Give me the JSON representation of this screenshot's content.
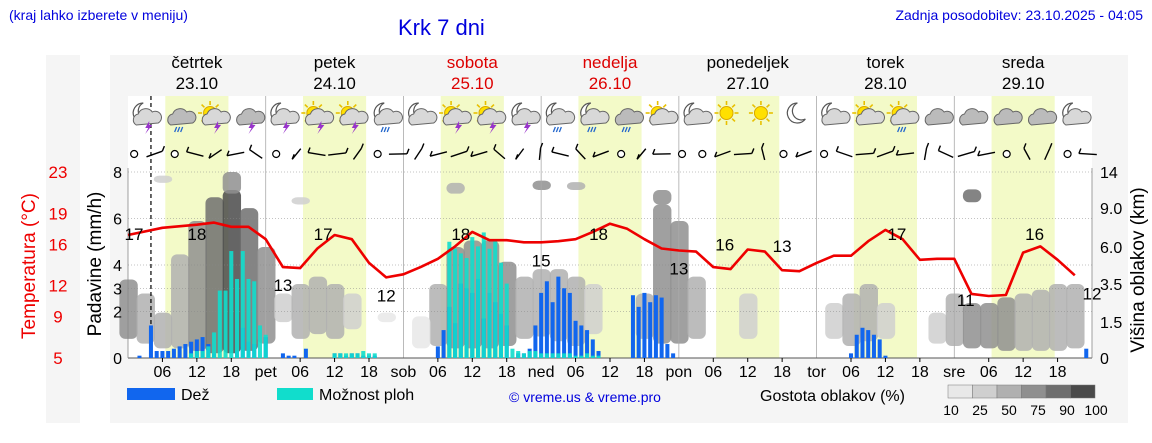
{
  "header": {
    "note": "(kraj lahko izberete v meniju)",
    "title": "Krk 7 dni",
    "updated": "Zadnja posodobitev: 23.10.2025 - 04:05"
  },
  "days": [
    {
      "name": "četrtek",
      "date": "23.10",
      "weekend": false
    },
    {
      "name": "petek",
      "date": "24.10",
      "weekend": false
    },
    {
      "name": "sobota",
      "date": "25.10",
      "weekend": true
    },
    {
      "name": "nedelja",
      "date": "26.10",
      "weekend": true
    },
    {
      "name": "ponedeljek",
      "date": "27.10",
      "weekend": false
    },
    {
      "name": "torek",
      "date": "28.10",
      "weekend": false
    },
    {
      "name": "sreda",
      "date": "29.10",
      "weekend": false
    }
  ],
  "axis_day_abbr": [
    "pet",
    "sob",
    "ned",
    "pon",
    "tor",
    "sre"
  ],
  "hour_ticks": [
    "06",
    "12",
    "18"
  ],
  "icons": [
    "moon-storm",
    "cloud-rain",
    "sun-storm",
    "cloud-storm",
    "moon-storm",
    "sun-storm",
    "sun-storm",
    "moon-rain",
    "moon-cloud",
    "sun-storm",
    "sun-storm",
    "moon-storm",
    "moon-rain",
    "moon-rain",
    "cloud-rain",
    "sun-cloud",
    "moon-cloud",
    "sun",
    "sun",
    "moon",
    "moon-cloud",
    "sun-cloud",
    "sun-rain",
    "cloud",
    "cloud",
    "cloud",
    "cloud",
    "moon-cloud"
  ],
  "colors": {
    "temperature": "#ee0000",
    "rain": "#1166ee",
    "showers": "#11ddcc",
    "weekend": "#dd0000",
    "title": "#0000dd",
    "day_band": "#f3fac8"
  },
  "legend": {
    "rain_label": "Dež",
    "showers_label": "Možnost ploh",
    "credit": "© vreme.us & vreme.pro",
    "cloud_title": "Gostota oblakov (%)",
    "cloud_levels": [
      "10",
      "25",
      "50",
      "75",
      "90",
      "100"
    ],
    "cloud_colors": [
      "#e8e8e8",
      "#cfcfcf",
      "#b0b0b0",
      "#8f8f8f",
      "#6e6e6e",
      "#4a4a4a"
    ]
  },
  "chart_data": {
    "type": "line",
    "x_unit": "hours from 23.10 00:00",
    "ylabel_left": "Padavine (mm/h)",
    "ylabel_right": "Višina oblakov (km)",
    "ylabel_temp": "Temperatura (°C)",
    "precip_ticks": [
      "0",
      "2",
      "3",
      "4",
      "6",
      "8"
    ],
    "cloud_ticks": [
      "0",
      "1.5",
      "3.5",
      "6.0",
      "9.0",
      "14"
    ],
    "temp_ticks": [
      "5",
      "9",
      "12",
      "16",
      "19",
      "23"
    ],
    "grid": true,
    "now_hour": 4,
    "temperature": {
      "x": [
        0,
        6,
        12,
        15,
        18,
        21,
        24,
        27,
        30,
        33,
        36,
        39,
        42,
        45,
        48,
        51,
        54,
        57,
        60,
        63,
        66,
        69,
        72,
        75,
        78,
        81,
        84,
        87,
        90,
        93,
        96,
        99,
        102,
        105,
        108,
        111,
        114,
        117,
        120,
        123,
        126,
        129,
        132,
        135,
        138,
        141,
        144,
        147,
        150,
        153,
        156,
        159,
        162,
        165
      ],
      "y": [
        16.9,
        17.6,
        17.9,
        18.1,
        17.7,
        17.7,
        16.5,
        13.8,
        13.7,
        15.6,
        16.9,
        16.5,
        14.2,
        12.8,
        13.1,
        13.8,
        14.6,
        15.8,
        17.2,
        16.4,
        16.4,
        16.2,
        16.2,
        16.3,
        16.5,
        17.2,
        18.0,
        17.5,
        16.5,
        15.6,
        15.4,
        15.3,
        13.8,
        13.6,
        15.5,
        15.3,
        13.5,
        13.4,
        14.2,
        14.9,
        14.9,
        16.3,
        17.4,
        16.5,
        14.5,
        14.6,
        14.6,
        11.2,
        11.0,
        11.1,
        15.2,
        15.8,
        14.5,
        13.0
      ]
    },
    "temp_labels": [
      {
        "x": 0,
        "v": "17"
      },
      {
        "x": 12,
        "v": "18"
      },
      {
        "x": 34,
        "v": "17"
      },
      {
        "x": 27,
        "v": "13"
      },
      {
        "x": 45,
        "v": "12"
      },
      {
        "x": 58,
        "v": "18"
      },
      {
        "x": 72,
        "v": "15"
      },
      {
        "x": 82,
        "v": "18"
      },
      {
        "x": 104,
        "v": "16"
      },
      {
        "x": 96,
        "v": "13"
      },
      {
        "x": 114,
        "v": "13"
      },
      {
        "x": 134,
        "v": "17"
      },
      {
        "x": 146,
        "v": "11"
      },
      {
        "x": 158,
        "v": "16"
      },
      {
        "x": 168,
        "v": "12"
      }
    ],
    "rain": {
      "x": [
        2,
        4,
        5,
        6,
        7,
        8,
        9,
        10,
        11,
        12,
        13,
        14,
        15,
        19,
        20,
        21,
        22,
        24,
        27,
        28,
        29,
        31,
        36,
        37,
        38,
        39,
        40,
        41,
        42,
        43,
        54,
        55,
        56,
        57,
        58,
        59,
        60,
        61,
        62,
        63,
        64,
        65,
        66,
        68,
        69,
        70,
        71,
        72,
        73,
        74,
        75,
        76,
        77,
        78,
        79,
        80,
        81,
        82,
        88,
        89,
        90,
        91,
        92,
        93,
        94,
        95,
        126,
        127,
        128,
        129,
        130,
        131,
        132,
        167
      ],
      "y": [
        0.1,
        1.4,
        0.3,
        0.3,
        0.3,
        0.4,
        0.5,
        0.6,
        0.7,
        0.8,
        0.9,
        0.6,
        0.2,
        0.3,
        1.3,
        0.7,
        0.6,
        0.9,
        0.2,
        0.1,
        0.1,
        0.4,
        0.2,
        0.2,
        0.1,
        0.2,
        0.2,
        0.1,
        0.1,
        0.1,
        0.5,
        1.2,
        2.2,
        1.5,
        3.2,
        3.0,
        2.8,
        3.4,
        1.7,
        2.8,
        2.4,
        1.9,
        1.4,
        0.2,
        0.2,
        0.4,
        1.4,
        2.8,
        3.3,
        2.4,
        3.5,
        3.0,
        2.8,
        1.6,
        1.4,
        1.2,
        0.8,
        0.3,
        2.7,
        2.2,
        2.8,
        2.4,
        2.7,
        2.6,
        0.6,
        0.2,
        0.2,
        1.0,
        1.3,
        1.2,
        1.0,
        0.8,
        0.1,
        0.4
      ]
    },
    "showers": {
      "x": [
        11,
        12,
        13,
        14,
        15,
        16,
        17,
        18,
        19,
        20,
        21,
        22,
        23,
        24,
        36,
        37,
        38,
        39,
        40,
        41,
        42,
        43,
        56,
        57,
        58,
        59,
        60,
        61,
        62,
        63,
        64,
        65,
        66,
        67,
        68,
        69,
        70,
        71,
        72,
        73,
        74,
        75,
        76,
        77,
        78,
        79,
        80,
        81,
        82
      ],
      "y": [
        0.2,
        0.3,
        0.3,
        0.5,
        1.1,
        2.9,
        2.9,
        4.6,
        3.4,
        4.6,
        3.4,
        3.3,
        1.4,
        1.0,
        0.2,
        0.2,
        0.2,
        0.2,
        0.2,
        0.3,
        0.2,
        0.2,
        5.0,
        4.7,
        4.5,
        4.3,
        5.2,
        4.8,
        5.4,
        4.7,
        5.1,
        4.1,
        3.2,
        0.4,
        0.3,
        0.2,
        0.3,
        0.3,
        0.2,
        0.2,
        0.2,
        0.2,
        0.2,
        0.2,
        0.1,
        0.1,
        0.2,
        0.1,
        0.1
      ]
    },
    "clouds": [
      {
        "x": 0,
        "y0": 0.8,
        "y1": 3.8,
        "d": 3
      },
      {
        "x": 3,
        "y0": 0.6,
        "y1": 3.0,
        "d": 2
      },
      {
        "x": 6,
        "y0": 0.4,
        "y1": 2.0,
        "d": 2
      },
      {
        "x": 9,
        "y0": 0.4,
        "y1": 5.5,
        "d": 2
      },
      {
        "x": 12,
        "y0": 0.3,
        "y1": 8.0,
        "d": 3
      },
      {
        "x": 15,
        "y0": 0.2,
        "y1": 10.5,
        "d": 4
      },
      {
        "x": 18,
        "y0": 0.2,
        "y1": 11.5,
        "d": 5
      },
      {
        "x": 21,
        "y0": 0.3,
        "y1": 9.0,
        "d": 4
      },
      {
        "x": 24,
        "y0": 0.6,
        "y1": 6.0,
        "d": 3
      },
      {
        "x": 27,
        "y0": 1.5,
        "y1": 3.0,
        "d": 1
      },
      {
        "x": 30,
        "y0": 0.8,
        "y1": 3.5,
        "d": 2
      },
      {
        "x": 33,
        "y0": 1.0,
        "y1": 4.0,
        "d": 2
      },
      {
        "x": 36,
        "y0": 0.8,
        "y1": 3.5,
        "d": 2
      },
      {
        "x": 39,
        "y0": 1.2,
        "y1": 3.0,
        "d": 1
      },
      {
        "x": 45,
        "y0": 1.5,
        "y1": 2.0,
        "d": 0
      },
      {
        "x": 54,
        "y0": 0.5,
        "y1": 3.5,
        "d": 2
      },
      {
        "x": 57,
        "y0": 0.4,
        "y1": 6.0,
        "d": 3
      },
      {
        "x": 60,
        "y0": 0.4,
        "y1": 6.5,
        "d": 3
      },
      {
        "x": 63,
        "y0": 0.4,
        "y1": 6.5,
        "d": 3
      },
      {
        "x": 66,
        "y0": 0.5,
        "y1": 5.0,
        "d": 3
      },
      {
        "x": 69,
        "y0": 0.8,
        "y1": 4.0,
        "d": 2
      },
      {
        "x": 72,
        "y0": 0.9,
        "y1": 4.5,
        "d": 2
      },
      {
        "x": 75,
        "y0": 0.7,
        "y1": 4.5,
        "d": 2
      },
      {
        "x": 78,
        "y0": 0.5,
        "y1": 4.0,
        "d": 2
      },
      {
        "x": 81,
        "y0": 1.0,
        "y1": 3.5,
        "d": 1
      },
      {
        "x": 90,
        "y0": 0.8,
        "y1": 3.0,
        "d": 2
      },
      {
        "x": 93,
        "y0": 0.6,
        "y1": 9.5,
        "d": 3
      },
      {
        "x": 96,
        "y0": 0.6,
        "y1": 8.0,
        "d": 3
      },
      {
        "x": 99,
        "y0": 0.8,
        "y1": 4.0,
        "d": 2
      },
      {
        "x": 108,
        "y0": 0.8,
        "y1": 3.0,
        "d": 1
      },
      {
        "x": 123,
        "y0": 0.8,
        "y1": 2.5,
        "d": 1
      },
      {
        "x": 126,
        "y0": 0.5,
        "y1": 3.0,
        "d": 2
      },
      {
        "x": 129,
        "y0": 0.7,
        "y1": 3.5,
        "d": 2
      },
      {
        "x": 132,
        "y0": 0.8,
        "y1": 2.5,
        "d": 1
      },
      {
        "x": 141,
        "y0": 0.6,
        "y1": 2.0,
        "d": 1
      },
      {
        "x": 144,
        "y0": 0.5,
        "y1": 3.0,
        "d": 2
      },
      {
        "x": 147,
        "y0": 0.4,
        "y1": 2.5,
        "d": 3
      },
      {
        "x": 150,
        "y0": 0.4,
        "y1": 2.5,
        "d": 3
      },
      {
        "x": 153,
        "y0": 0.3,
        "y1": 2.8,
        "d": 3
      },
      {
        "x": 156,
        "y0": 0.3,
        "y1": 3.0,
        "d": 2
      },
      {
        "x": 159,
        "y0": 0.3,
        "y1": 3.2,
        "d": 2
      },
      {
        "x": 162,
        "y0": 0.3,
        "y1": 3.5,
        "d": 2
      },
      {
        "x": 165,
        "y0": 0.4,
        "y1": 3.5,
        "d": 2
      },
      {
        "x": 51,
        "y0": 0.4,
        "y1": 1.8,
        "d": 0
      },
      {
        "x": 6,
        "y0": 12.5,
        "y1": 13.5,
        "d": 1
      },
      {
        "x": 18,
        "y0": 11,
        "y1": 14,
        "d": 3
      },
      {
        "x": 30,
        "y0": 9.5,
        "y1": 10.5,
        "d": 1
      },
      {
        "x": 57,
        "y0": 11,
        "y1": 12.5,
        "d": 2
      },
      {
        "x": 72,
        "y0": 11.5,
        "y1": 12.8,
        "d": 3
      },
      {
        "x": 78,
        "y0": 11.5,
        "y1": 12.6,
        "d": 2
      },
      {
        "x": 93,
        "y0": 9.5,
        "y1": 11.5,
        "d": 3
      },
      {
        "x": 147,
        "y0": 9.8,
        "y1": 11.6,
        "d": 4
      }
    ]
  }
}
